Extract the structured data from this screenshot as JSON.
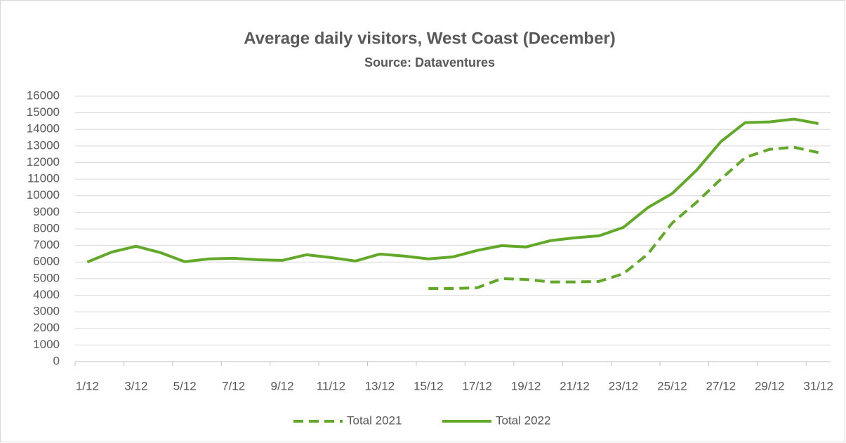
{
  "chart_data": {
    "type": "line",
    "title": "Average daily visitors, West Coast (December)",
    "subtitle": "Source: Dataventures",
    "categories": [
      "1/12",
      null,
      "3/12",
      null,
      "5/12",
      null,
      "7/12",
      null,
      "9/12",
      null,
      "11/12",
      null,
      "13/12",
      null,
      "15/12",
      null,
      "17/12",
      null,
      "19/12",
      null,
      "21/12",
      null,
      "23/12",
      null,
      "25/12",
      null,
      "27/12",
      null,
      "29/12",
      null,
      "31/12"
    ],
    "series": [
      {
        "name": "Total 2021",
        "color": "#62a829",
        "dash": true,
        "values": [
          null,
          null,
          null,
          null,
          null,
          null,
          null,
          null,
          null,
          null,
          null,
          null,
          null,
          null,
          4400,
          4400,
          4450,
          5000,
          4950,
          4800,
          4800,
          4830,
          5300,
          6480,
          8350,
          9600,
          11000,
          12300,
          12800,
          12920,
          12600
        ]
      },
      {
        "name": "Total 2022",
        "color": "#62a829",
        "dash": false,
        "values": [
          6000,
          6600,
          6950,
          6570,
          6020,
          6190,
          6230,
          6140,
          6100,
          6440,
          6270,
          6060,
          6480,
          6360,
          6190,
          6310,
          6700,
          6990,
          6910,
          7290,
          7460,
          7580,
          8090,
          9280,
          10130,
          11530,
          13260,
          14410,
          14450,
          14620,
          14350
        ]
      }
    ],
    "ylim": [
      0,
      16000
    ],
    "yticks": [
      0,
      1000,
      2000,
      3000,
      4000,
      5000,
      6000,
      7000,
      8000,
      9000,
      10000,
      11000,
      12000,
      13000,
      14000,
      15000,
      16000
    ],
    "grid": true,
    "legend": "bottom"
  }
}
